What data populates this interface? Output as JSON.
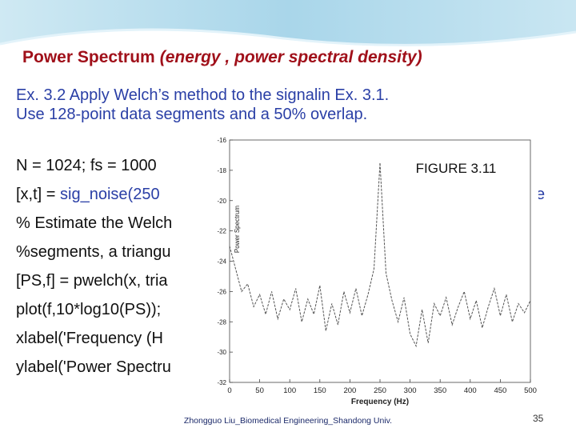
{
  "title": {
    "main": "Power Spectrum",
    "paren": "(energy , power spectral density)"
  },
  "exercise": [
    "Ex. 3.2 Apply Welch’s method to the signalin Ex. 3.1.",
    "Use 128-point data segments and a 50% overlap."
  ],
  "code": [
    "N = 1024; fs = 1000",
    "[x,t] = ",
    "sig_noise(250",
    "e",
    "% Estimate the Welch",
    "%segments, a triangu",
    "[PS,f] = pwelch(x, tria",
    "plot(f,10*log10(PS));",
    "xlabel('Frequency (H",
    "ylabel('Power Spectru"
  ],
  "figure": {
    "type": "line",
    "title": "FIGURE 3.11",
    "xlabel": "Frequency (Hz)",
    "ylabel": "Power Spectrum",
    "color": "#555555",
    "x": [
      0,
      10,
      20,
      30,
      40,
      50,
      60,
      70,
      80,
      90,
      100,
      110,
      120,
      130,
      140,
      150,
      160,
      170,
      180,
      190,
      200,
      210,
      220,
      230,
      240,
      250,
      260,
      270,
      280,
      290,
      300,
      310,
      320,
      330,
      340,
      350,
      360,
      370,
      380,
      390,
      400,
      410,
      420,
      430,
      440,
      450,
      460,
      470,
      480,
      490,
      500
    ],
    "values": [
      -23,
      -24.5,
      -26,
      -25.5,
      -27,
      -26.2,
      -27.5,
      -26,
      -27.8,
      -26.5,
      -27.2,
      -25.8,
      -28,
      -26.5,
      -27.5,
      -25.6,
      -28.6,
      -26.8,
      -28.2,
      -26,
      -27.4,
      -25.8,
      -27.6,
      -26.2,
      -24.5,
      -17.5,
      -24.8,
      -26.6,
      -28,
      -26.4,
      -28.8,
      -29.6,
      -27.2,
      -29.4,
      -26.8,
      -27.6,
      -26.4,
      -28.2,
      -27,
      -26,
      -27.8,
      -26.6,
      -28.4,
      -27,
      -25.8,
      -27.6,
      -26.2,
      -28,
      -26.8,
      -27.4,
      -26.6
    ],
    "xlim": [
      0,
      500
    ],
    "ylim": [
      -32,
      -16
    ],
    "xticks": [
      0,
      50,
      100,
      150,
      200,
      250,
      300,
      350,
      400,
      450,
      500
    ],
    "yticks": [
      -16,
      -18,
      -20,
      -22,
      -24,
      -26,
      -28,
      -30,
      -32
    ]
  },
  "footer": "Zhongguo Liu_Biomedical Engineering_Shandong Univ.",
  "page_number": "35"
}
